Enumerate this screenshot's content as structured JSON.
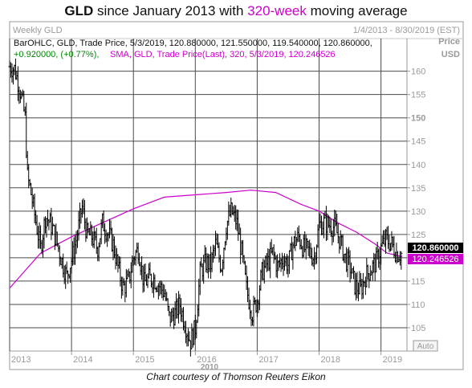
{
  "title": {
    "ticker": "GLD",
    "middle": " since January 2013 with ",
    "accent": "320-week",
    "tail": " moving average"
  },
  "panel": {
    "period": "Weekly GLD",
    "date_range": "1/4/2013 - 8/30/2019 (EST)",
    "currency_label": "Price",
    "currency": "USD",
    "auto_button": "Auto",
    "ohlc_legend": "BarOHLC, GLD, Trade Price, 5/3/2019, 120.880000, 121.550000, 119.540000, 120.860000,",
    "change_legend": "+0.920000, (+0.77%),",
    "sma_legend": "SMA, GLD, Trade Price(Last), 320, 5/3/2019, 120.246526",
    "last_price_label": "120.860000",
    "sma_value_label": "120.246526"
  },
  "credit": "Chart courtesy of Thomson Reuters Eikon",
  "colors": {
    "price_bars": "#000000",
    "sma_line": "#cc00cc",
    "grid": "#4a4a4a",
    "legend_change": "#008800",
    "legend_sma": "#cc00cc"
  },
  "chart_data": {
    "type": "line",
    "y_ticks": [
      105,
      110,
      115,
      120,
      125,
      130,
      135,
      140,
      145,
      150,
      155,
      160
    ],
    "y_bold_ticks": [
      150
    ],
    "ylim": [
      100,
      167
    ],
    "x_tick_labels": [
      "2013",
      "2014",
      "2015",
      "2016",
      "2017",
      "2018",
      "2019"
    ],
    "x_tick_dates": [
      2013.0,
      2014.0,
      2015.0,
      2016.0,
      2017.0,
      2018.0,
      2019.0
    ],
    "x_sublabel": "2010",
    "xlim": [
      2013.0,
      2019.42
    ],
    "grid": true,
    "series": [
      {
        "name": "GLD",
        "style": "ohlc",
        "x": [
          2013.0,
          2013.08,
          2013.17,
          2013.25,
          2013.29,
          2013.33,
          2013.42,
          2013.5,
          2013.58,
          2013.67,
          2013.75,
          2013.83,
          2013.92,
          2014.0,
          2014.08,
          2014.17,
          2014.25,
          2014.33,
          2014.42,
          2014.5,
          2014.58,
          2014.67,
          2014.75,
          2014.83,
          2014.92,
          2015.0,
          2015.08,
          2015.17,
          2015.25,
          2015.33,
          2015.42,
          2015.5,
          2015.58,
          2015.67,
          2015.75,
          2015.83,
          2015.92,
          2016.0,
          2016.08,
          2016.17,
          2016.25,
          2016.33,
          2016.42,
          2016.5,
          2016.58,
          2016.67,
          2016.75,
          2016.83,
          2016.92,
          2017.0,
          2017.08,
          2017.17,
          2017.25,
          2017.33,
          2017.42,
          2017.5,
          2017.58,
          2017.67,
          2017.75,
          2017.83,
          2017.92,
          2018.0,
          2018.08,
          2018.17,
          2018.25,
          2018.33,
          2018.42,
          2018.5,
          2018.58,
          2018.67,
          2018.75,
          2018.83,
          2018.92,
          2019.0,
          2019.08,
          2019.17,
          2019.25,
          2019.34
        ],
        "values": [
          161.0,
          160.5,
          156.0,
          150.0,
          137.0,
          135.0,
          128.0,
          122.0,
          129.0,
          127.0,
          124.0,
          120.0,
          116.0,
          119.5,
          124.0,
          131.0,
          125.0,
          124.5,
          122.0,
          127.5,
          125.5,
          123.0,
          118.0,
          113.5,
          115.0,
          120.0,
          122.0,
          114.5,
          115.5,
          115.5,
          114.0,
          112.5,
          107.0,
          108.0,
          110.0,
          106.0,
          102.0,
          105.0,
          117.0,
          119.0,
          118.5,
          123.0,
          118.0,
          127.0,
          130.0,
          127.5,
          121.0,
          113.0,
          108.0,
          111.0,
          117.0,
          119.0,
          121.0,
          118.0,
          120.0,
          118.5,
          123.0,
          124.5,
          122.0,
          121.5,
          120.0,
          127.0,
          127.5,
          127.0,
          126.5,
          124.0,
          120.0,
          118.0,
          114.0,
          113.0,
          116.0,
          117.5,
          119.0,
          122.0,
          124.0,
          123.0,
          121.0,
          120.86
        ]
      },
      {
        "name": "SMA 320",
        "style": "line",
        "x": [
          2013.0,
          2013.5,
          2014.0,
          2014.5,
          2015.0,
          2015.5,
          2016.0,
          2016.5,
          2016.9,
          2017.3,
          2017.7,
          2018.0,
          2018.3,
          2018.6,
          2018.9,
          2019.1,
          2019.34
        ],
        "values": [
          113.5,
          121.0,
          124.5,
          127.5,
          130.5,
          133.0,
          133.5,
          134.0,
          134.5,
          134.0,
          131.5,
          130.0,
          127.5,
          125.5,
          123.0,
          121.0,
          120.25
        ]
      }
    ]
  }
}
